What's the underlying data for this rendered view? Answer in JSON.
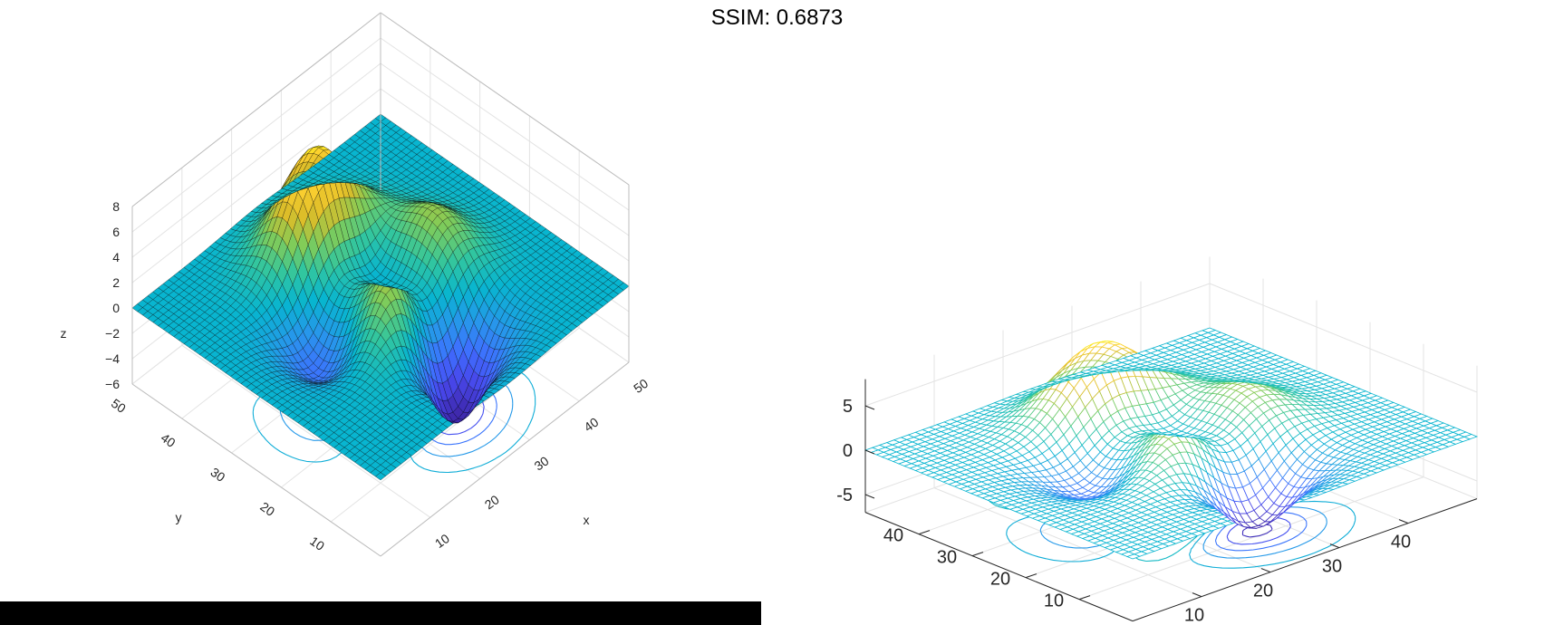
{
  "title": "SSIM: 0.6873",
  "chart_data": [
    {
      "type": "surface",
      "function": "peaks",
      "grid_size": 49,
      "title": "",
      "xlabel": "x",
      "ylabel": "y",
      "zlabel": "z",
      "xlim": [
        0,
        50
      ],
      "ylim": [
        0,
        50
      ],
      "zlim": [
        -6,
        8
      ],
      "x_ticks": [
        "10",
        "20",
        "30",
        "40",
        "50"
      ],
      "y_ticks": [
        "10",
        "20",
        "30",
        "40",
        "50"
      ],
      "z_ticks": [
        "−6",
        "−4",
        "−2",
        "0",
        "2",
        "4",
        "6",
        "8"
      ],
      "z_min": -6.5,
      "z_max": 8.1,
      "contour_below": true,
      "grid": true,
      "colormap": "parula",
      "edge_color": "#000000"
    },
    {
      "type": "mesh",
      "function": "peaks",
      "grid_size": 49,
      "title": "",
      "xlabel": "",
      "ylabel": "",
      "zlabel": "",
      "xlim": [
        0,
        50
      ],
      "ylim": [
        0,
        50
      ],
      "zlim": [
        -7,
        8
      ],
      "x_ticks": [
        "10",
        "20",
        "30",
        "40"
      ],
      "y_ticks": [
        "10",
        "20",
        "30",
        "40"
      ],
      "z_ticks": [
        "-5",
        "0",
        "5"
      ],
      "z_min": -6.5,
      "z_max": 8.1,
      "contour_below": true,
      "grid": true,
      "colormap": "parula"
    }
  ]
}
